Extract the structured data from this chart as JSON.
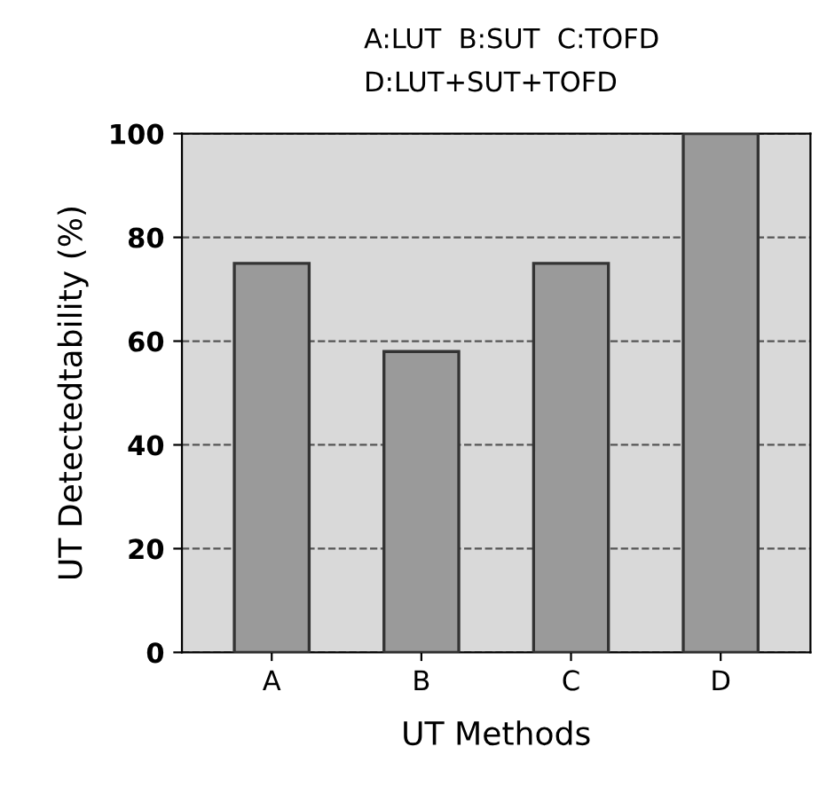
{
  "chart_data": {
    "type": "bar",
    "categories": [
      "A",
      "B",
      "C",
      "D"
    ],
    "values": [
      75,
      58,
      75,
      100
    ],
    "color": "#9a9a9a",
    "xlabel": "UT Methods",
    "ylabel": "UT Detectedtability (%)",
    "annotations": [
      "A:LUT  B:SUT  C:TOFD",
      "D:LUT+SUT+TOFD"
    ],
    "ylim": [
      0,
      100
    ],
    "yticks": [
      0,
      20,
      40,
      60,
      80,
      100
    ],
    "grid": "y",
    "line_style": "dashed"
  }
}
